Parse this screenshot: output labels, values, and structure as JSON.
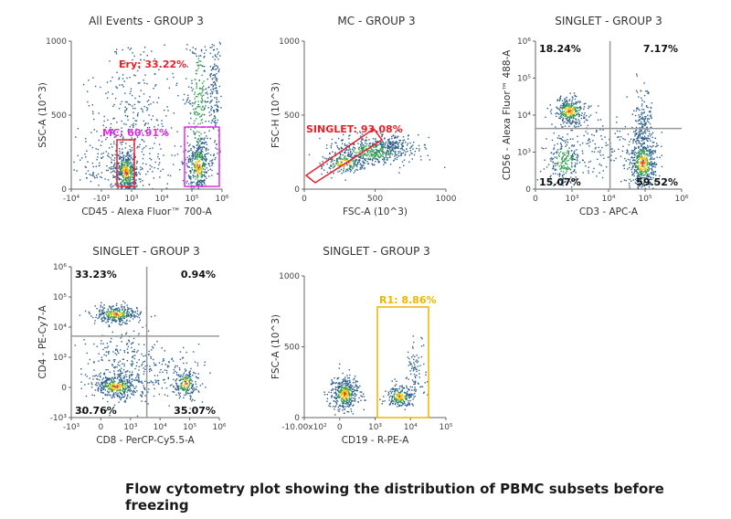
{
  "caption": "Flow cytometry plot showing the distribution of PBMC subsets before freezing",
  "colors": {
    "axis": "#666666",
    "quad_line": "#999999",
    "red": "#e8202a",
    "magenta": "#e030e0",
    "yellow": "#f0b400",
    "dot_low": "#2c5f8a",
    "dot_mid": "#2f9e4c",
    "dot_high": "#f2c200",
    "dot_peak": "#e8401c"
  },
  "chart_data": [
    {
      "type": "scatter",
      "title": "All Events - GROUP 3",
      "xlabel": "CD45 - Alexa Fluor™ 700-A",
      "ylabel": "SSC-A (10^3)",
      "x_ticks": [
        "-10⁴",
        "-10³",
        "10³",
        "10⁴",
        "10⁵",
        "10⁶"
      ],
      "y_ticks": [
        "0",
        "500",
        "1000"
      ],
      "gates": [
        {
          "name": "Ery",
          "label": "Ery: 33.22%",
          "color": "red",
          "percent": 33.22
        },
        {
          "name": "MC",
          "label": "MC: 60.91%",
          "color": "magenta",
          "percent": 60.91
        }
      ]
    },
    {
      "type": "scatter",
      "title": "MC - GROUP 3",
      "xlabel": "FSC-A (10^3)",
      "ylabel": "FSC-H (10^3)",
      "x_ticks": [
        "0",
        "500",
        "1000"
      ],
      "y_ticks": [
        "0",
        "500",
        "1000"
      ],
      "gates": [
        {
          "name": "SINGLET",
          "label": "SINGLET: 93.08%",
          "color": "red",
          "percent": 93.08
        }
      ]
    },
    {
      "type": "scatter",
      "title": "SINGLET - GROUP 3",
      "xlabel": "CD3 - APC-A",
      "ylabel": "CD56 - Alexa Fluor™ 488-A",
      "x_ticks": [
        "0",
        "10³",
        "10⁴",
        "10⁵",
        "10⁶"
      ],
      "y_ticks": [
        "0",
        "10³",
        "10⁴",
        "10⁵",
        "10⁶"
      ],
      "quadrants": {
        "top_left": "18.24%",
        "top_right": "7.17%",
        "bottom_left": "15.07%",
        "bottom_right": "59.52%"
      }
    },
    {
      "type": "scatter",
      "title": "SINGLET - GROUP 3",
      "xlabel": "CD8 - PerCP-Cy5.5-A",
      "ylabel": "CD4 - PE-Cy7-A",
      "x_ticks": [
        "-10³",
        "0",
        "10³",
        "10⁴",
        "10⁵",
        "10⁶"
      ],
      "y_ticks": [
        "-10³",
        "0",
        "10³",
        "10⁴",
        "10⁵",
        "10⁶"
      ],
      "quadrants": {
        "top_left": "33.23%",
        "top_right": "0.94%",
        "bottom_left": "30.76%",
        "bottom_right": "35.07%"
      }
    },
    {
      "type": "scatter",
      "title": "SINGLET - GROUP 3",
      "xlabel": "CD19 - R-PE-A",
      "ylabel": "FSC-A (10^3)",
      "x_ticks": [
        "-10.00x10²",
        "0",
        "10³",
        "10⁴",
        "10⁵"
      ],
      "y_ticks": [
        "0",
        "500",
        "1000"
      ],
      "gates": [
        {
          "name": "R1",
          "label": "R1: 8.86%",
          "color": "yellow",
          "percent": 8.86
        }
      ]
    }
  ]
}
